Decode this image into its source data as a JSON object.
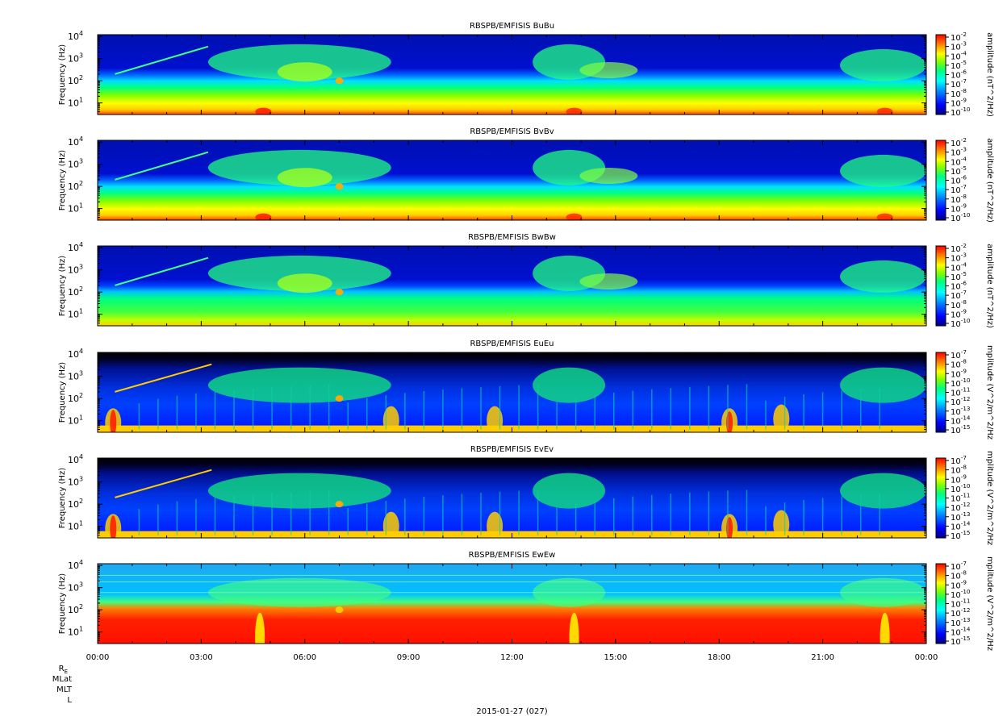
{
  "chart_data": {
    "type": "heatmap",
    "panels": [
      {
        "title": "RBSPB/EMFISIS  BuBu",
        "ylabel": "Frequency (Hz)",
        "ylim": [
          3,
          12000
        ],
        "yscale": "log",
        "yticks": [
          "10",
          "10",
          "10",
          "10"
        ],
        "ytick_exp": [
          "1",
          "2",
          "3",
          "4"
        ],
        "colorbar_label": "amplitude (nT^2/Hz)",
        "cb_mantissa": "10",
        "cb_exp": [
          "-2",
          "-3",
          "-4",
          "-5",
          "-6",
          "-7",
          "-8",
          "-9",
          "-10"
        ],
        "style": "b"
      },
      {
        "title": "RBSPB/EMFISIS  BvBv",
        "ylabel": "Frequency (Hz)",
        "ylim": [
          3,
          12000
        ],
        "yscale": "log",
        "yticks": [
          "10",
          "10",
          "10",
          "10"
        ],
        "ytick_exp": [
          "1",
          "2",
          "3",
          "4"
        ],
        "colorbar_label": "amplitude (nT^2/Hz)",
        "cb_mantissa": "10",
        "cb_exp": [
          "-2",
          "-3",
          "-4",
          "-5",
          "-6",
          "-7",
          "-8",
          "-9",
          "-10"
        ],
        "style": "b"
      },
      {
        "title": "RBSPB/EMFISIS  BwBw",
        "ylabel": "Frequency (Hz)",
        "ylim": [
          3,
          12000
        ],
        "yscale": "log",
        "yticks": [
          "10",
          "10",
          "10",
          "10"
        ],
        "ytick_exp": [
          "1",
          "2",
          "3",
          "4"
        ],
        "colorbar_label": "amplitude (nT^2/Hz)",
        "cb_mantissa": "10",
        "cb_exp": [
          "-2",
          "-3",
          "-4",
          "-5",
          "-6",
          "-7",
          "-8",
          "-9",
          "-10"
        ],
        "style": "b"
      },
      {
        "title": "RBSPB/EMFISIS  EuEu",
        "ylabel": "Frequency (Hz)",
        "ylim": [
          3,
          12000
        ],
        "yscale": "log",
        "yticks": [
          "10",
          "10",
          "10",
          "10"
        ],
        "ytick_exp": [
          "1",
          "2",
          "3",
          "4"
        ],
        "colorbar_label": "mplitude (V^2/m^2/Hz",
        "cb_mantissa": "10",
        "cb_exp": [
          "-7",
          "-8",
          "-9",
          "-10",
          "-11",
          "-12",
          "-13",
          "-14",
          "-15"
        ],
        "style": "e"
      },
      {
        "title": "RBSPB/EMFISIS  EvEv",
        "ylabel": "Frequency (Hz)",
        "ylim": [
          3,
          12000
        ],
        "yscale": "log",
        "yticks": [
          "10",
          "10",
          "10",
          "10"
        ],
        "ytick_exp": [
          "1",
          "2",
          "3",
          "4"
        ],
        "colorbar_label": "mplitude (V^2/m^2/Hz",
        "cb_mantissa": "10",
        "cb_exp": [
          "-7",
          "-8",
          "-9",
          "-10",
          "-11",
          "-12",
          "-13",
          "-14",
          "-15"
        ],
        "style": "e"
      },
      {
        "title": "RBSPB/EMFISIS  EwEw",
        "ylabel": "Frequency (Hz)",
        "ylim": [
          3,
          12000
        ],
        "yscale": "log",
        "yticks": [
          "10",
          "10",
          "10",
          "10"
        ],
        "ytick_exp": [
          "1",
          "2",
          "3",
          "4"
        ],
        "colorbar_label": "mplitude (V^2/m^2/Hz",
        "cb_mantissa": "10",
        "cb_exp": [
          "-7",
          "-8",
          "-9",
          "-10",
          "-11",
          "-12",
          "-13",
          "-14",
          "-15"
        ],
        "style": "ew"
      }
    ],
    "x_ticks": [
      "00:00",
      "03:00",
      "06:00",
      "09:00",
      "12:00",
      "15:00",
      "18:00",
      "21:00",
      "00:00"
    ],
    "x_range_hours": [
      0,
      24
    ],
    "ephemeris_labels": [
      "R",
      "MLat",
      "MLT",
      "L"
    ],
    "ephemeris_R_subscript": "E",
    "date_label": "2015-01-27 (027)",
    "colormap": [
      "#000080",
      "#0000ff",
      "#0080ff",
      "#00ffff",
      "#00ff80",
      "#80ff00",
      "#ffff00",
      "#ff8000",
      "#ff0000"
    ]
  }
}
